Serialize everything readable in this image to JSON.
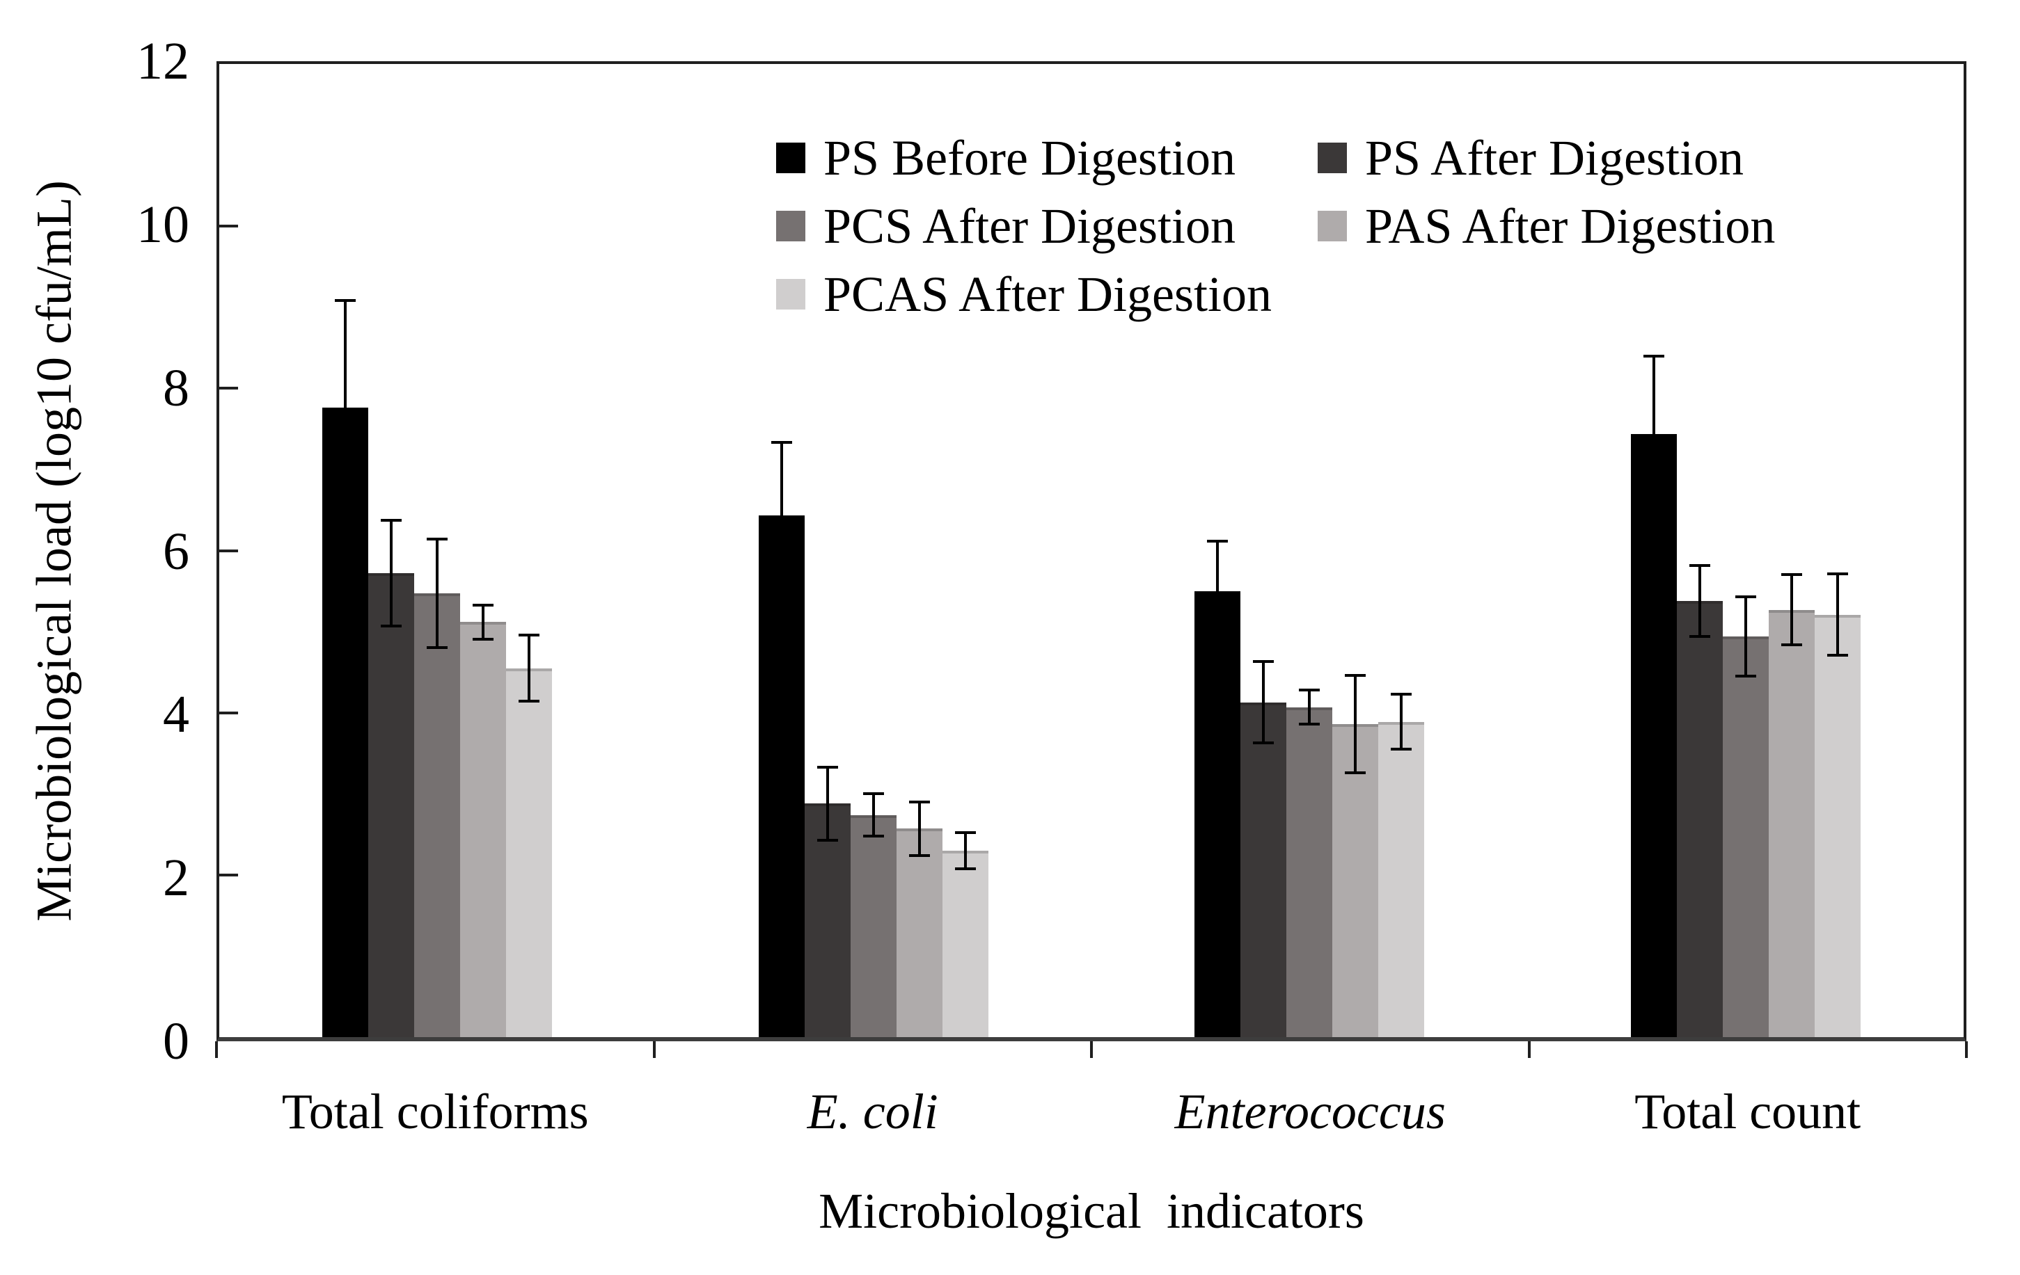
{
  "figure": {
    "y_axis_title": "Microbiological load (log10 cfu/mL)",
    "x_axis_title": "Microbiological indicators"
  },
  "chart_data": {
    "type": "bar",
    "title": "",
    "xlabel": "Microbiological indicators",
    "ylabel": "Microbiological load (log10 cfu/mL)",
    "ylim": [
      0,
      12
    ],
    "yticks": [
      0,
      2,
      4,
      6,
      8,
      10,
      12
    ],
    "grid": false,
    "error_bars": true,
    "legend_position": "top-center, 2 columns",
    "axis_color": "#1f1f1f",
    "categories": [
      {
        "label": "Total coliforms",
        "italic": false
      },
      {
        "label": "E. coli",
        "italic": true
      },
      {
        "label": "Enterococcus",
        "italic": true
      },
      {
        "label": "Total count",
        "italic": false
      }
    ],
    "series": [
      {
        "name": "PS Before Digestion",
        "color": "#000000",
        "values": [
          7.76,
          6.43,
          5.5,
          7.44
        ],
        "errors": [
          1.32,
          0.9,
          0.62,
          0.96
        ]
      },
      {
        "name": "PS After Digestion",
        "color": "#3B3838",
        "values": [
          5.72,
          2.88,
          4.13,
          5.38
        ],
        "errors": [
          0.65,
          0.45,
          0.5,
          0.44
        ]
      },
      {
        "name": "PCS After Digestion",
        "color": "#767171",
        "values": [
          5.47,
          2.74,
          4.07,
          4.94
        ],
        "errors": [
          0.67,
          0.26,
          0.21,
          0.49
        ]
      },
      {
        "name": "PAS After Digestion",
        "color": "#AFABAB",
        "values": [
          5.12,
          2.57,
          3.86,
          5.27
        ],
        "errors": [
          0.21,
          0.33,
          0.6,
          0.43
        ]
      },
      {
        "name": "PCAS After Digestion",
        "color": "#D0CECE",
        "values": [
          4.55,
          2.3,
          3.89,
          5.21
        ],
        "errors": [
          0.41,
          0.22,
          0.34,
          0.5
        ]
      }
    ]
  }
}
